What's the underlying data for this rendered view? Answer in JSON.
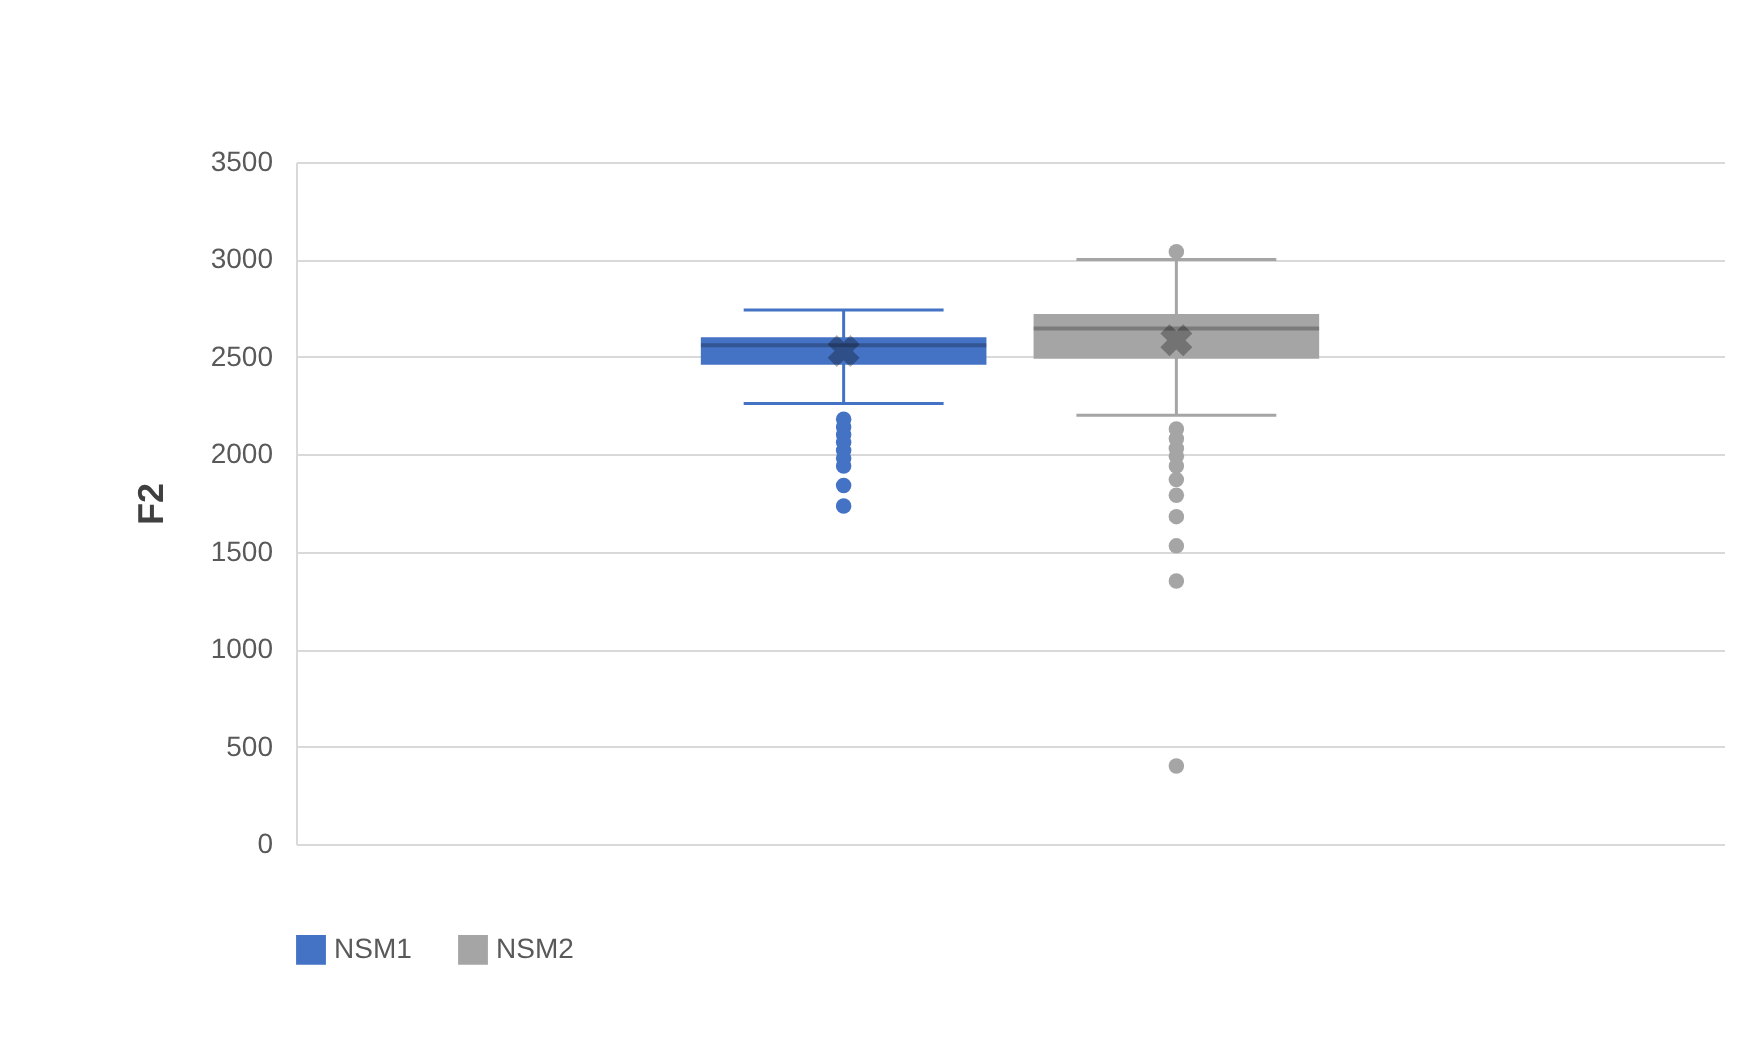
{
  "chart_data": {
    "type": "box",
    "ylabel": "F2",
    "categories": [
      null
    ],
    "ylim": [
      0,
      3500
    ],
    "yticks": [
      0,
      500,
      1000,
      1500,
      2000,
      2500,
      3000,
      3500
    ],
    "grid": "y",
    "legend": "bottom",
    "series": [
      {
        "name": "NSM1",
        "color": "#4472c4",
        "boxes": [
          {
            "low": 2260,
            "q1": 2460,
            "median": 2560,
            "q3": 2600,
            "high": 2740,
            "mean": 2530,
            "outliers": [
              2180,
              2140,
              2100,
              2060,
              2020,
              1980,
              1940,
              1840,
              1735
            ]
          }
        ]
      },
      {
        "name": "NSM2",
        "color": "#a5a5a5",
        "boxes": [
          {
            "low": 2200,
            "q1": 2490,
            "median": 2645,
            "q3": 2720,
            "high": 3000,
            "mean": 2585,
            "outliers": [
              3040,
              2130,
              2080,
              2030,
              1990,
              1940,
              1870,
              1790,
              1680,
              1530,
              1350,
              400
            ]
          }
        ]
      }
    ]
  }
}
